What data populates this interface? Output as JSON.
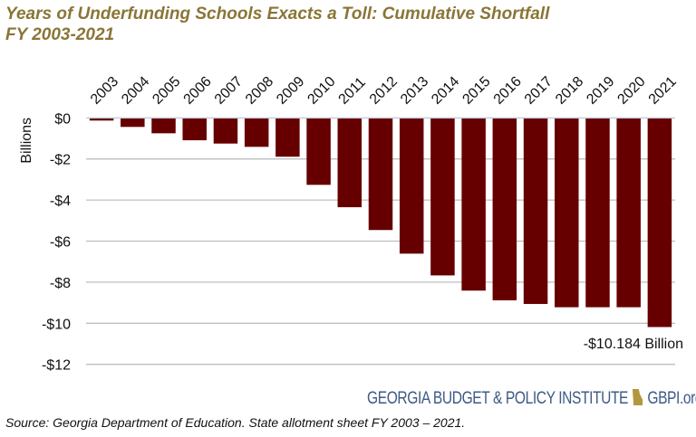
{
  "title_line1": "Years of Underfunding Schools Exacts a Toll: Cumulative Shortfall",
  "title_line2": "FY 2003-2021",
  "source": "Source: Georgia Department of Education. State allotment sheet FY 2003 – 2021.",
  "logo": {
    "name": "GEORGIA BUDGET & POLICY INSTITUTE",
    "url_text": "GBPI.org"
  },
  "colors": {
    "bar": "#660000",
    "title": "#8a7536",
    "logo": "#3e5a85",
    "grid": "#bfbfbf"
  },
  "chart_data": {
    "type": "bar",
    "title": "Years of Underfunding Schools Exacts a Toll: Cumulative Shortfall FY 2003-2021",
    "xlabel": "",
    "ylabel": "Billions",
    "ylim": [
      -12,
      0
    ],
    "yticks": [
      0,
      -2,
      -4,
      -6,
      -8,
      -10,
      -12
    ],
    "ytick_labels": [
      "$0",
      "-$2",
      "-$4",
      "-$6",
      "-$8",
      "-$10",
      "-$12"
    ],
    "grid": true,
    "x_axis_position": "top",
    "categories": [
      "2003",
      "2004",
      "2005",
      "2006",
      "2007",
      "2008",
      "2009",
      "2010",
      "2011",
      "2012",
      "2013",
      "2014",
      "2015",
      "2016",
      "2017",
      "2018",
      "2019",
      "2020",
      "2021"
    ],
    "values": [
      -0.13,
      -0.44,
      -0.75,
      -1.09,
      -1.25,
      -1.41,
      -1.89,
      -3.26,
      -4.35,
      -5.46,
      -6.61,
      -7.67,
      -8.41,
      -8.88,
      -9.06,
      -9.22,
      -9.22,
      -9.22,
      -10.184
    ],
    "annotation": "-$10.184 Billion"
  }
}
